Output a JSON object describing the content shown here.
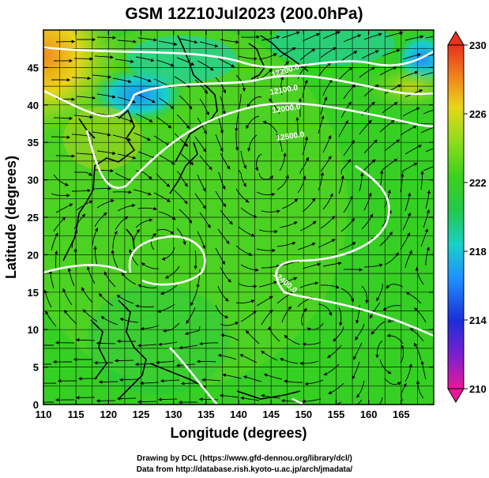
{
  "title": "GSM 12Z10Jul2023 (200.0hPa)",
  "x_axis": {
    "label": "Longitude (degrees)",
    "min": 110,
    "max": 170,
    "ticks": [
      "110",
      "115",
      "120",
      "125",
      "130",
      "135",
      "140",
      "145",
      "150",
      "155",
      "160",
      "165"
    ]
  },
  "y_axis": {
    "label": "Latitude  (degrees)",
    "min": 0,
    "max": 50,
    "ticks": [
      "0",
      "5",
      "10",
      "15",
      "20",
      "25",
      "30",
      "35",
      "40",
      "45"
    ]
  },
  "colorbar": {
    "min": 210,
    "max": 230,
    "tick_labels": [
      "230",
      "226",
      "222",
      "218",
      "214",
      "210"
    ],
    "colors": [
      "#e8189a",
      "#7a1fd0",
      "#1a2fd8",
      "#1e90ff",
      "#19d0c8",
      "#22c84a",
      "#3ed11e",
      "#8fdc1c",
      "#e8d51a",
      "#f08a1c",
      "#e8321c"
    ]
  },
  "contour_labels": [
    "12000.0",
    "12100.0",
    "12200.0",
    "12400.0",
    "12500.0"
  ],
  "credits": {
    "line1": "Drawing by DCL (https://www.gfd-dennou.org/library/dcl/)",
    "line2": "Data from http://database.rish.kyoto-u.ac.jp/arch/jmadata/"
  }
}
